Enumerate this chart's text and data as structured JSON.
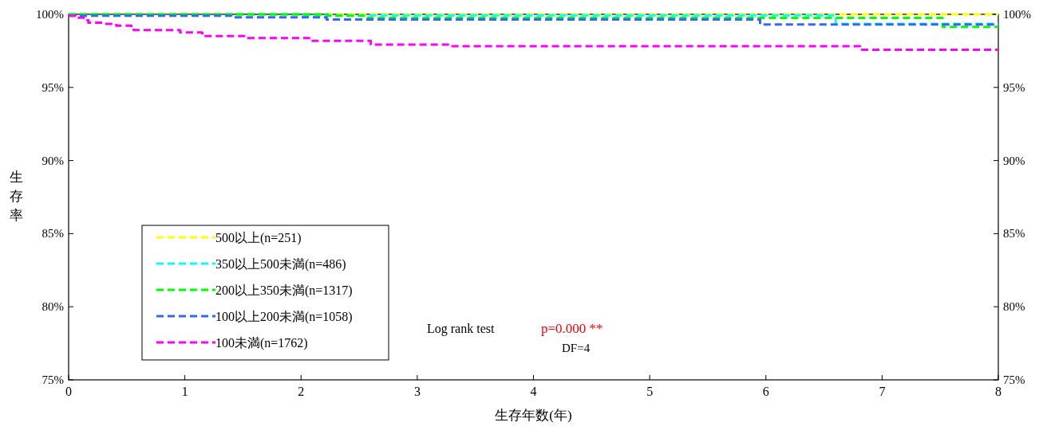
{
  "chart_data": {
    "type": "step",
    "xlabel": "生存年数(年)",
    "ylabel": "生存率",
    "xlim": [
      0,
      8
    ],
    "xticks": [
      0,
      1,
      2,
      3,
      4,
      5,
      6,
      7,
      8
    ],
    "ylim": [
      75,
      100
    ],
    "yticks": [
      {
        "value": 75,
        "label": "75%"
      },
      {
        "value": 80,
        "label": "80%"
      },
      {
        "value": 85,
        "label": "85%"
      },
      {
        "value": 90,
        "label": "90%"
      },
      {
        "value": 95,
        "label": "95%"
      },
      {
        "value": 100,
        "label": "100%"
      }
    ],
    "y2lim": [
      75,
      100
    ],
    "y2ticks": [
      {
        "value": 75,
        "label": "75%"
      },
      {
        "value": 80,
        "label": "80%"
      },
      {
        "value": 85,
        "label": "85%"
      },
      {
        "value": 90,
        "label": "90%"
      },
      {
        "value": 95,
        "label": "95%"
      },
      {
        "value": 100,
        "label": "100%"
      }
    ],
    "grid": false,
    "legend": "bottom left",
    "line_style": "dashed",
    "marker": "none",
    "series": [
      {
        "name": "500以上(n=251)",
        "color": "#ffff00",
        "x": [
          0,
          8
        ],
        "values": [
          100,
          100
        ]
      },
      {
        "name": "350以上500未満(n=486)",
        "color": "#00ffff",
        "x": [
          0,
          2.0,
          6.6,
          8
        ],
        "values": [
          100,
          99.93,
          99.35,
          99.35
        ]
      },
      {
        "name": "200以上350未満(n=1317)",
        "color": "#00ff00",
        "x": [
          0,
          2.23,
          2.56,
          7.52,
          8
        ],
        "values": [
          100,
          99.9,
          99.75,
          99.14,
          99.14
        ]
      },
      {
        "name": "100以上200未満(n=1058)",
        "color": "#3366ff",
        "x": [
          0,
          1.4,
          2.22,
          5.95,
          8
        ],
        "values": [
          99.91,
          99.8,
          99.64,
          99.3,
          99.3
        ]
      },
      {
        "name": "100未満(n=1762)",
        "color": "#ff00ff",
        "x": [
          0,
          0.06,
          0.16,
          0.17,
          0.3,
          0.41,
          0.54,
          0.56,
          0.96,
          1.15,
          1.52,
          2.07,
          2.6,
          3.29,
          6.81,
          8
        ],
        "values": [
          99.91,
          99.77,
          99.6,
          99.43,
          99.35,
          99.22,
          99.12,
          98.93,
          98.76,
          98.51,
          98.38,
          98.19,
          97.93,
          97.82,
          97.57,
          97.57
        ]
      }
    ],
    "annotations": [
      "Log rank test",
      "p=0.000 **",
      "DF=4"
    ]
  }
}
